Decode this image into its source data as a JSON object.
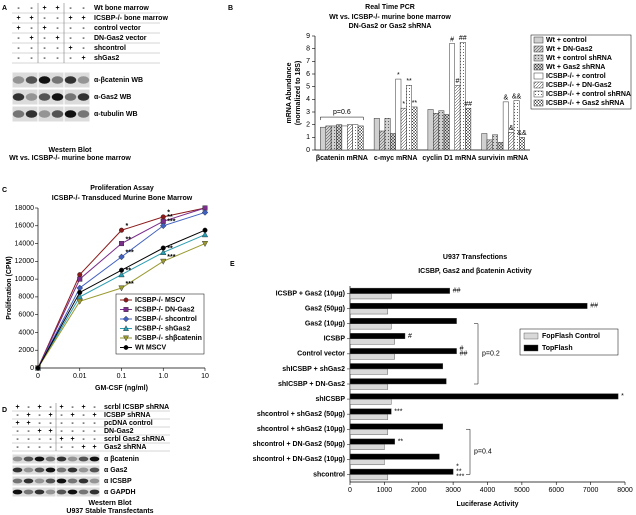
{
  "figure": {
    "panel_a": {
      "label": "A",
      "rows": [
        {
          "name": "Wt bone marrow",
          "signs": [
            "-",
            "-",
            "+",
            "+",
            "-",
            "-"
          ]
        },
        {
          "name": "ICSBP-/- bone marrow",
          "signs": [
            "+",
            "+",
            "-",
            "-",
            "+",
            "+"
          ]
        },
        {
          "name": "control vector",
          "signs": [
            "+",
            "-",
            "+",
            "-",
            "-",
            "-"
          ]
        },
        {
          "name": "DN-Gas2 vector",
          "signs": [
            "-",
            "+",
            "-",
            "+",
            "-",
            "-"
          ]
        },
        {
          "name": "shcontrol",
          "signs": [
            "-",
            "-",
            "-",
            "-",
            "+",
            "-"
          ]
        },
        {
          "name": "shGas2",
          "signs": [
            "-",
            "-",
            "-",
            "-",
            "-",
            "+"
          ]
        }
      ],
      "blots": [
        "α-βcatenin WB",
        "α-Gas2 WB",
        "α-tubulin WB"
      ],
      "caption": [
        "Western Blot",
        "Wt vs. ICSBP-/- murine bone marrow"
      ]
    },
    "panel_d": {
      "label": "D",
      "rows": [
        {
          "name": "scrbl ICSBP shRNA",
          "signs": [
            "+",
            "-",
            "+",
            "-",
            "+",
            "-",
            "+",
            "-"
          ]
        },
        {
          "name": "ICSBP shRNA",
          "signs": [
            "-",
            "+",
            "-",
            "+",
            "-",
            "+",
            "-",
            "+"
          ]
        },
        {
          "name": "pcDNA control",
          "signs": [
            "+",
            "+",
            "-",
            "-",
            "-",
            "-",
            "-",
            "-"
          ]
        },
        {
          "name": "DN-Gas2",
          "signs": [
            "-",
            "-",
            "+",
            "+",
            "-",
            "-",
            "-",
            "-"
          ]
        },
        {
          "name": "scrbl Gas2 shRNA",
          "signs": [
            "-",
            "-",
            "-",
            "-",
            "+",
            "+",
            "-",
            "-"
          ]
        },
        {
          "name": "Gas2 shRNA",
          "signs": [
            "-",
            "-",
            "-",
            "-",
            "-",
            "-",
            "+",
            "+"
          ]
        }
      ],
      "blots": [
        "α βcatenin",
        "α Gas2",
        "α ICSBP",
        "α GAPDH"
      ],
      "caption": [
        "Western Blot",
        "U937 Stable Transfectants"
      ]
    }
  },
  "chart_data": [
    {
      "label": "B",
      "type": "bar",
      "title": "Real Time PCR",
      "subtitle": [
        "Wt vs. ICSBP-/- murine bone marrow",
        "DN-Gas2 or Gas2 shRNA"
      ],
      "ylabel": [
        "mRNA Abundance",
        "(normalized to 18S)"
      ],
      "categories": [
        "βcatenin mRNA",
        "c-myc mRNA",
        "cyclin D1 mRNA",
        "survivin mRNA"
      ],
      "ylim": [
        0,
        9
      ],
      "yticks": [
        0,
        1,
        2,
        3,
        4,
        5,
        6,
        7,
        8,
        9
      ],
      "annotations": [
        "p=0.6"
      ],
      "series": [
        {
          "name": "Wt + control",
          "color": "#d0d0d0",
          "pattern": "solid",
          "values": [
            1.8,
            2.5,
            3.2,
            1.3
          ]
        },
        {
          "name": "Wt + DN-Gas2",
          "color": "#d0d0d0",
          "pattern": "diagonal",
          "values": [
            1.9,
            1.5,
            2.9,
            0.8
          ]
        },
        {
          "name": "Wt + control shRNA",
          "color": "#d0d0d0",
          "pattern": "dots",
          "values": [
            1.9,
            2.5,
            3.1,
            1.2
          ]
        },
        {
          "name": "Wt + Gas2 shRNA",
          "color": "#d0d0d0",
          "pattern": "cross",
          "values": [
            2.0,
            1.3,
            2.8,
            0.6
          ]
        },
        {
          "name": "ICSBP-/- + control",
          "color": "#ffffff",
          "pattern": "solid",
          "values": [
            1.9,
            5.6,
            8.4,
            3.8
          ],
          "markers": [
            null,
            "*",
            "#",
            "&"
          ]
        },
        {
          "name": "ICSBP-/- + DN-Gas2",
          "color": "#ffffff",
          "pattern": "diagonal",
          "values": [
            2.0,
            3.3,
            5.1,
            1.4
          ],
          "markers": [
            null,
            "*",
            "#",
            "&"
          ]
        },
        {
          "name": "ICSBP-/- + control shRNA",
          "color": "#ffffff",
          "pattern": "dots",
          "values": [
            2.0,
            5.1,
            8.5,
            3.9
          ],
          "markers": [
            null,
            "**",
            "##",
            "&&"
          ]
        },
        {
          "name": "ICSBP-/- + Gas2 shRNA",
          "color": "#ffffff",
          "pattern": "cross",
          "values": [
            1.9,
            3.4,
            3.3,
            1.0
          ],
          "markers": [
            null,
            "**",
            "##",
            "&&"
          ]
        }
      ]
    },
    {
      "label": "C",
      "type": "line",
      "title": "Proliferation Assay",
      "subtitle": "ICSBP-/- Transduced Murine Bone Marrow",
      "xlabel": "GM-CSF (ng/ml)",
      "ylabel": "Proliferation (CPM)",
      "categories": [
        "0",
        "0.01",
        "0.1",
        "1.0",
        "10"
      ],
      "ylim": [
        0,
        18000
      ],
      "yticks": [
        0,
        2000,
        4000,
        6000,
        8000,
        10000,
        12000,
        14000,
        16000,
        18000
      ],
      "legend": "lower right",
      "series": [
        {
          "name": "ICSBP-/-  MSCV",
          "color": "#8b1a1a",
          "marker": "circle",
          "values": [
            0,
            10500,
            15500,
            17000,
            18000
          ],
          "markers": [
            null,
            null,
            "*",
            "*",
            null
          ]
        },
        {
          "name": "ICSBP-/-  DN-Gas2",
          "color": "#7b2d8b",
          "marker": "square",
          "values": [
            0,
            10000,
            14000,
            16500,
            18000
          ],
          "markers": [
            null,
            null,
            "**",
            "**",
            null
          ]
        },
        {
          "name": "ICSBP-/-  shcontrol",
          "color": "#4060c0",
          "marker": "diamond",
          "values": [
            0,
            9000,
            12500,
            16000,
            17500
          ],
          "markers": [
            null,
            null,
            "***",
            "***",
            null
          ]
        },
        {
          "name": "ICSBP-/-  shGas2",
          "color": "#2a9db0",
          "marker": "triangle",
          "values": [
            0,
            8000,
            10500,
            13000,
            15000
          ],
          "markers": [
            null,
            null,
            "**",
            "**",
            null
          ]
        },
        {
          "name": "ICSBP-/-  shβcatenin",
          "color": "#9a9a30",
          "marker": "triangle-down",
          "values": [
            0,
            7500,
            9000,
            12000,
            14000
          ],
          "markers": [
            null,
            null,
            "***",
            "***",
            null
          ]
        },
        {
          "name": "Wt  MSCV",
          "color": "#000000",
          "marker": "circle",
          "values": [
            0,
            8500,
            11000,
            13500,
            15500
          ]
        }
      ]
    },
    {
      "label": "E",
      "type": "hbar",
      "title": "U937 Transfections",
      "subtitle": "ICSBP, Gas2 and βcatenin Activity",
      "xlabel": "Luciferase Activity",
      "categories": [
        "ICSBP + Gas2 (10μg)",
        "Gas2 (50μg)",
        "Gas2 (10μg)",
        "ICSBP",
        "Control vector",
        "shICSBP + shGas2",
        "shICSBP + DN-Gas2",
        "shICSBP",
        "shcontrol + shGas2 (50μg)",
        "shcontrol + shGas2 (10μg)",
        "shcontrol + DN-Gas2 (50μg)",
        "shcontrol + DN-Gas2 (10μg)",
        "shcontrol"
      ],
      "xlim": [
        0,
        8000
      ],
      "xticks": [
        0,
        1000,
        2000,
        3000,
        4000,
        5000,
        6000,
        7000,
        8000
      ],
      "annotations": [
        "p=0.2",
        "p=0.4"
      ],
      "legend": "upper right",
      "series": [
        {
          "name": "FopFlash Control",
          "color": "#d9d9d9",
          "values": [
            1200,
            1100,
            1200,
            1300,
            1300,
            1100,
            1100,
            1200,
            1100,
            1100,
            1000,
            1000,
            1100
          ]
        },
        {
          "name": "TopFlash",
          "color": "#000000",
          "values": [
            2900,
            6900,
            3100,
            1600,
            3100,
            2700,
            2800,
            7800,
            1200,
            2700,
            1300,
            2600,
            3000
          ],
          "markers": [
            "##",
            "##",
            null,
            "#",
            [
              "#",
              "##"
            ],
            null,
            null,
            "*",
            "***",
            null,
            "**",
            null,
            [
              "*",
              "**",
              "***"
            ]
          ]
        }
      ]
    }
  ]
}
